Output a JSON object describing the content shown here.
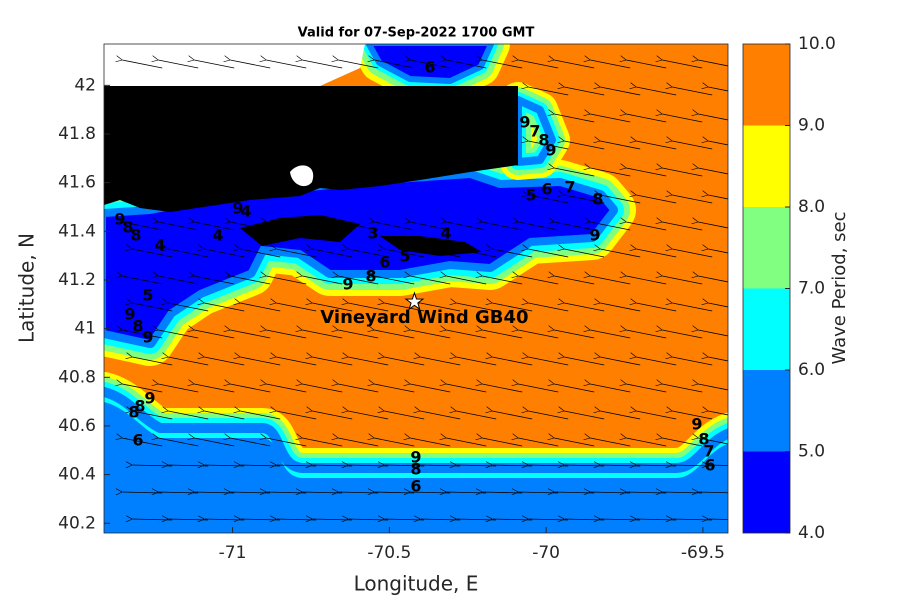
{
  "chart_data": {
    "type": "contour",
    "title": "Valid for 07-Sep-2022 1700 GMT",
    "xlabel": "Longitude, E",
    "ylabel": "Latitude, N",
    "xlim": [
      -71.41,
      -69.42
    ],
    "ylim": [
      40.16,
      42.17
    ],
    "xticks": [
      -71,
      -70.5,
      -70,
      -69.5
    ],
    "yticks": [
      40.2,
      40.4,
      40.6,
      40.8,
      41,
      41.2,
      41.4,
      41.6,
      41.8,
      42
    ],
    "colorbar": {
      "label": "Wave Period, sec",
      "ticks": [
        {
          "value": 4,
          "label": "4.0"
        },
        {
          "value": 5,
          "label": "5.0"
        },
        {
          "value": 6,
          "label": "6.0"
        },
        {
          "value": 7,
          "label": "7.0"
        },
        {
          "value": 8,
          "label": "8.0"
        },
        {
          "value": 9,
          "label": "9.0"
        },
        {
          "value": 10,
          "label": "10.0"
        }
      ],
      "colors": [
        "#0000ff",
        "#0080ff",
        "#00ffff",
        "#80ff80",
        "#ffff00",
        "#ff8000"
      ]
    },
    "annotation": {
      "text": "Vineyard Wind GB40",
      "x": -70.42,
      "y": 41.11
    },
    "contour_labels": [
      6,
      9,
      7,
      8,
      9,
      5,
      6,
      7,
      8,
      9,
      4,
      5,
      6,
      8,
      9,
      3,
      4,
      9,
      8,
      8,
      4,
      9,
      4,
      5,
      9,
      8,
      9,
      9,
      8,
      8,
      6,
      9,
      8,
      6,
      9,
      8,
      7,
      6
    ]
  }
}
